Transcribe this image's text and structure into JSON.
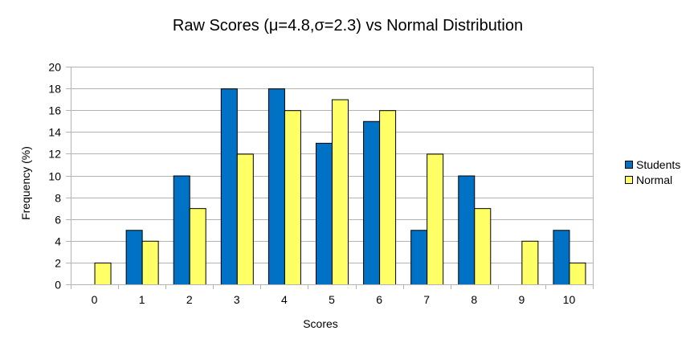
{
  "chart_data": {
    "type": "bar",
    "title": "Raw Scores (μ=4.8,σ=2.3) vs Normal Distribution",
    "xlabel": "Scores",
    "ylabel": "Frequency (%)",
    "categories": [
      "0",
      "1",
      "2",
      "3",
      "4",
      "5",
      "6",
      "7",
      "8",
      "9",
      "10"
    ],
    "series": [
      {
        "name": "Students",
        "color": "#0072c6",
        "values": [
          0,
          5,
          10,
          18,
          18,
          13,
          15,
          5,
          10,
          0,
          5
        ]
      },
      {
        "name": "Normal",
        "color": "#ffff66",
        "values": [
          2,
          4,
          7,
          12,
          16,
          17,
          16,
          12,
          7,
          4,
          2
        ]
      }
    ],
    "ylim": [
      0,
      20
    ],
    "yticks": [
      "0",
      "2",
      "4",
      "6",
      "8",
      "10",
      "12",
      "14",
      "16",
      "18",
      "20"
    ],
    "grid": true,
    "legend_position": "right"
  }
}
